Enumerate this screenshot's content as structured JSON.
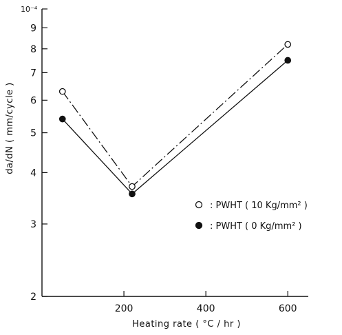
{
  "chart_data": {
    "type": "line",
    "title": "",
    "xlabel": "Heating  rate ( °C / hr )",
    "ylabel": "da/dN ( mm/cycle )",
    "x_scale": "linear",
    "y_scale": "log",
    "xlim": [
      0,
      650
    ],
    "ylim": [
      2,
      10
    ],
    "x_ticks": [
      {
        "value": 200,
        "label": "200"
      },
      {
        "value": 400,
        "label": "400"
      },
      {
        "value": 600,
        "label": "600"
      }
    ],
    "y_ticks": [
      {
        "value": 2,
        "label": "2"
      },
      {
        "value": 3,
        "label": "3"
      },
      {
        "value": 4,
        "label": "4"
      },
      {
        "value": 5,
        "label": "5"
      },
      {
        "value": 6,
        "label": "6"
      },
      {
        "value": 7,
        "label": "7"
      },
      {
        "value": 8,
        "label": "8"
      },
      {
        "value": 9,
        "label": "9"
      }
    ],
    "y_top_label": "10⁻⁴",
    "grid": false,
    "legend_position": "right",
    "series": [
      {
        "name": ": PWHT ( 10 Kg/mm² )",
        "marker": "open-circle",
        "line_style": "dash-dot",
        "x": [
          50,
          220,
          600
        ],
        "y": [
          6.3,
          3.7,
          8.2
        ]
      },
      {
        "name": ": PWHT (  0 Kg/mm² )",
        "marker": "filled-circle",
        "line_style": "solid",
        "x": [
          50,
          220,
          600
        ],
        "y": [
          5.4,
          3.55,
          7.5
        ]
      }
    ]
  }
}
